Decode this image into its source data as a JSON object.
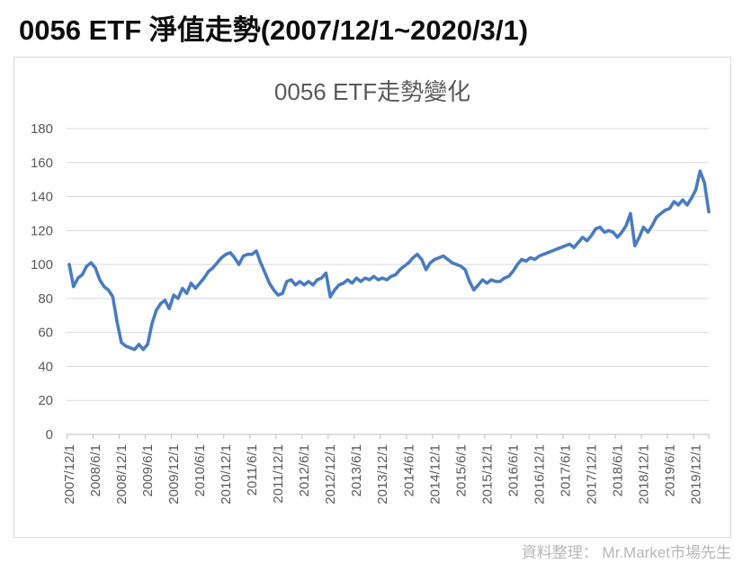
{
  "page_title": "0056 ETF 淨值走勢(2007/12/1~2020/3/1)",
  "chart": {
    "title": "0056 ETF走勢變化",
    "attribution": "資料整理： Mr.Market市場先生"
  },
  "chart_data": {
    "type": "line",
    "title": "0056 ETF走勢變化",
    "series_name": "0056 ETF",
    "x_start": "2007/12/1",
    "x_end": "2020/3/1",
    "x_tick_labels": [
      "2007/12/1",
      "2008/6/1",
      "2008/12/1",
      "2009/6/1",
      "2009/12/1",
      "2010/6/1",
      "2010/12/1",
      "2011/6/1",
      "2011/12/1",
      "2012/6/1",
      "2012/12/1",
      "2013/6/1",
      "2013/12/1",
      "2014/6/1",
      "2014/12/1",
      "2015/6/1",
      "2015/12/1",
      "2016/6/1",
      "2016/12/1",
      "2017/6/1",
      "2017/12/1",
      "2018/6/1",
      "2018/12/1",
      "2019/6/1",
      "2019/12/1"
    ],
    "months_per_tick": 6,
    "values": [
      100,
      87,
      92,
      94,
      99,
      101,
      98,
      91,
      87,
      85,
      81,
      66,
      54,
      52,
      51,
      50,
      53,
      50,
      53,
      65,
      73,
      77,
      79,
      74,
      82,
      80,
      86,
      83,
      89,
      86,
      89,
      92,
      96,
      98,
      101,
      104,
      106,
      107,
      104,
      100,
      105,
      106,
      106,
      108,
      101,
      95,
      89,
      85,
      82,
      83,
      90,
      91,
      88,
      90,
      88,
      90,
      88,
      91,
      92,
      95,
      81,
      85,
      88,
      89,
      91,
      89,
      92,
      90,
      92,
      91,
      93,
      91,
      92,
      91,
      93,
      94,
      97,
      99,
      101,
      104,
      106,
      103,
      97,
      101,
      103,
      104,
      105,
      103,
      101,
      100,
      99,
      97,
      90,
      85,
      88,
      91,
      89,
      91,
      90,
      90,
      92,
      93,
      96,
      100,
      103,
      102,
      104,
      103,
      105,
      106,
      107,
      108,
      109,
      110,
      111,
      112,
      110,
      113,
      116,
      114,
      117,
      121,
      122,
      119,
      120,
      119,
      116,
      119,
      123,
      130,
      111,
      116,
      122,
      119,
      123,
      128,
      130,
      132,
      133,
      137,
      135,
      138,
      135,
      139,
      144,
      155,
      148,
      131
    ],
    "ylim": [
      0,
      180
    ],
    "yticks": [
      0,
      20,
      40,
      60,
      80,
      100,
      120,
      140,
      160,
      180
    ],
    "grid": "horizontal",
    "legend": "none",
    "line_color": "#4a7cbd"
  }
}
